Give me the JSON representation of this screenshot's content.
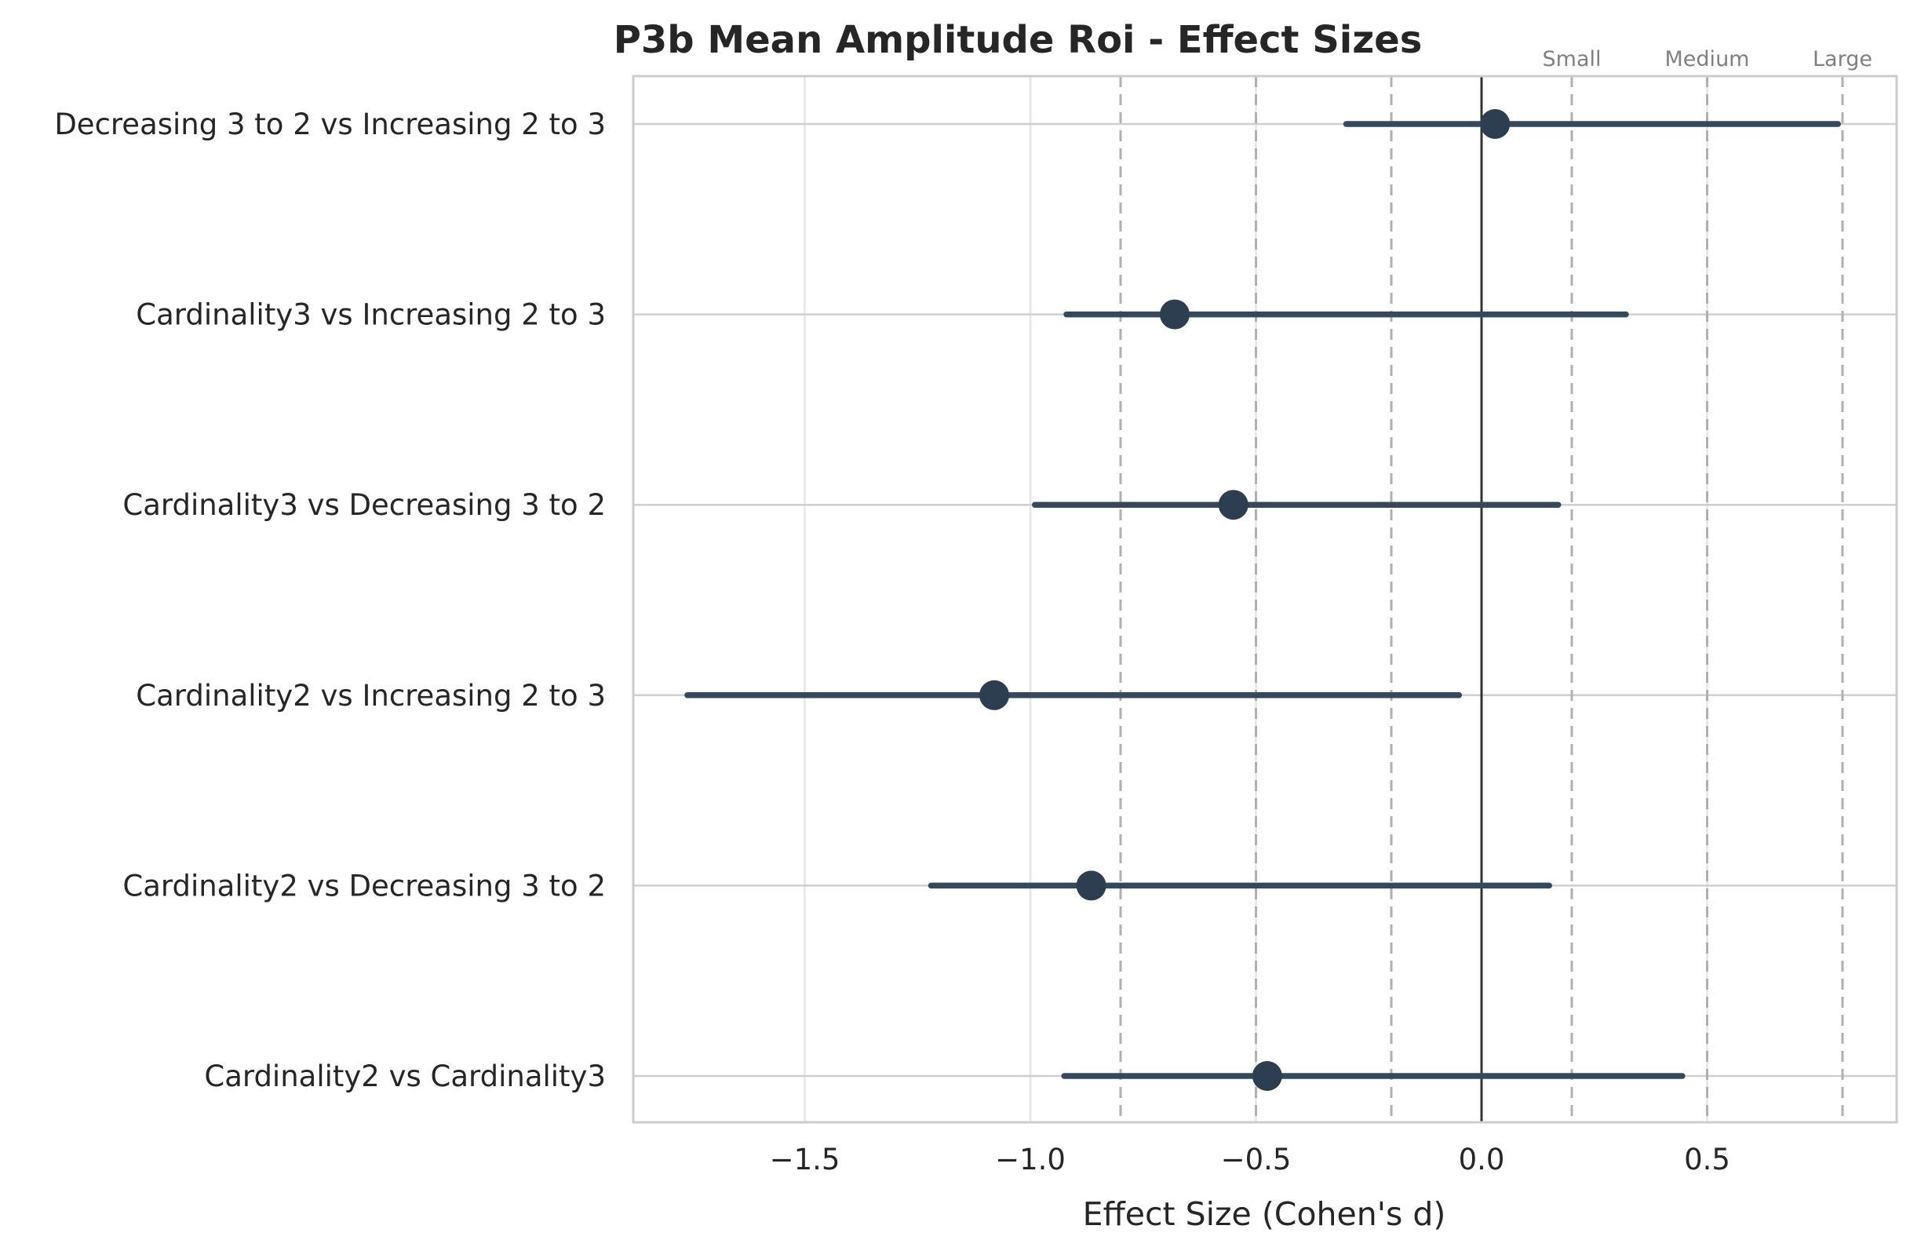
{
  "chart_data": {
    "type": "forest",
    "title": "P3b Mean Amplitude Roi - Effect Sizes",
    "xlabel": "Effect Size (Cohen's d)",
    "ylabel": "",
    "xlim": [
      -1.88,
      0.92
    ],
    "x_ticks": [
      -1.5,
      -1.0,
      -0.5,
      0.0,
      0.5
    ],
    "x_tick_labels": [
      "−1.5",
      "−1.0",
      "−0.5",
      "0.0",
      "0.5"
    ],
    "grid": true,
    "zero_line": 0.0,
    "reference_lines": [
      {
        "value": -0.8,
        "label": ""
      },
      {
        "value": -0.5,
        "label": ""
      },
      {
        "value": -0.2,
        "label": ""
      },
      {
        "value": 0.2,
        "label": "Small"
      },
      {
        "value": 0.5,
        "label": "Medium"
      },
      {
        "value": 0.8,
        "label": "Large"
      }
    ],
    "comparisons": [
      {
        "label": "Decreasing 3 to 2 vs Increasing 2 to 3",
        "d": 0.03,
        "ci_low": -0.3,
        "ci_high": 0.79
      },
      {
        "label": "Cardinality3 vs Increasing 2 to 3",
        "d": -0.68,
        "ci_low": -0.92,
        "ci_high": 0.32
      },
      {
        "label": "Cardinality3 vs Decreasing 3 to 2",
        "d": -0.55,
        "ci_low": -0.99,
        "ci_high": 0.17
      },
      {
        "label": "Cardinality2 vs Increasing 2 to 3",
        "d": -1.08,
        "ci_low": -1.76,
        "ci_high": -0.05
      },
      {
        "label": "Cardinality2 vs Decreasing 3 to 2",
        "d": -0.865,
        "ci_low": -1.22,
        "ci_high": 0.15
      },
      {
        "label": "Cardinality2 vs Cardinality3",
        "d": -0.475,
        "ci_low": -0.925,
        "ci_high": 0.445
      }
    ],
    "colors": {
      "marker": "#2c3e50",
      "ci": "#34495e",
      "zero_line": "#333333",
      "ref_line": "#b0b0b0",
      "grid": "#e5e5e5",
      "spine": "#cccccc"
    }
  }
}
